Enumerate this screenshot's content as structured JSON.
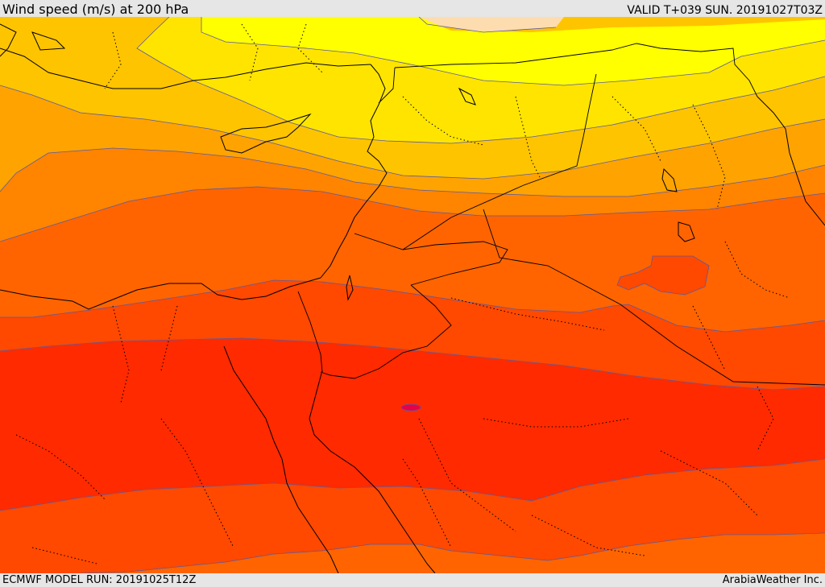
{
  "header": {
    "title": "Wind speed (m/s) at 200 hPa",
    "valid": "VALID T+039 SUN. 20191027T03Z"
  },
  "footer": {
    "model_run": "ECMWF MODEL RUN: 20191025T12Z",
    "credit": "ArabiaWeather Inc."
  },
  "map": {
    "field": "wind speed",
    "level": "200 hPa",
    "band_colors": [
      "#fddcb0",
      "#ffff00",
      "#ffe400",
      "#ffc400",
      "#ffa300",
      "#ff8400",
      "#ff6400",
      "#ff4800",
      "#ff2a00",
      "#e8004a"
    ],
    "contour_color": "#5a5aa0",
    "border_color": "#000000"
  }
}
